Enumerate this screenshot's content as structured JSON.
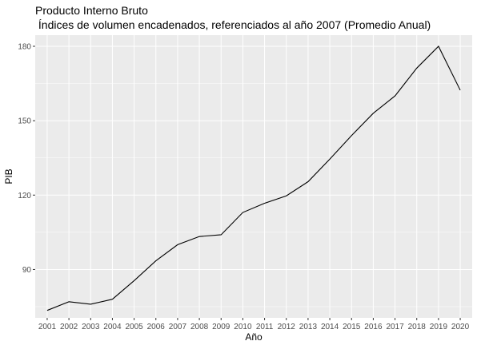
{
  "chart_data": {
    "type": "line",
    "title": "Producto Interno Bruto",
    "subtitle": " Índices de volumen encadenados, referenciados al año 2007 (Promedio Anual)",
    "xlabel": "Año",
    "ylabel": "PIB",
    "x": [
      2001,
      2002,
      2003,
      2004,
      2005,
      2006,
      2007,
      2008,
      2009,
      2010,
      2011,
      2012,
      2013,
      2014,
      2015,
      2016,
      2017,
      2018,
      2019,
      2020
    ],
    "series": [
      {
        "values": [
          73.5,
          77.0,
          76.0,
          78.0,
          85.5,
          93.5,
          100.0,
          103.3,
          104.0,
          113.0,
          116.7,
          119.7,
          125.4,
          134.5,
          144.0,
          153.0,
          160.0,
          171.2,
          180.0,
          162.3
        ],
        "color": "#000000"
      }
    ],
    "yticks": [
      90,
      120,
      150,
      180
    ],
    "ylim": [
      70.5,
      184.5
    ],
    "xlim": [
      2000.45,
      2020.55
    ],
    "grid": true,
    "legend": "none",
    "panel_color": "#ebebeb",
    "grid_color": "#ffffff"
  }
}
